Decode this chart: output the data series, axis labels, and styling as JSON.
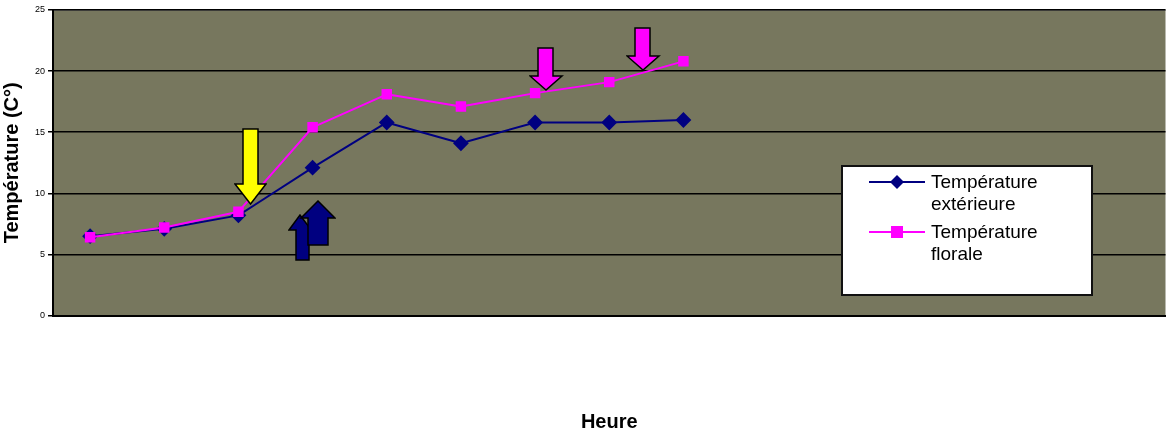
{
  "chart_data": {
    "type": "line",
    "xlabel": "Heure",
    "ylabel": "Température (C°)",
    "categories": [
      null,
      null,
      null,
      null,
      null,
      null,
      null,
      null,
      null,
      null,
      null,
      null,
      null,
      null,
      null
    ],
    "series": [
      {
        "name": "Température extérieure",
        "color": "#000080",
        "marker": "diamond",
        "values": [
          6.5,
          7.1,
          8.2,
          12.1,
          15.8,
          14.1,
          15.8,
          15.8,
          16.0,
          null,
          null,
          null,
          null,
          null,
          null
        ]
      },
      {
        "name": "Température florale",
        "color": "#ff00ff",
        "marker": "square",
        "values": [
          6.4,
          7.2,
          8.5,
          15.4,
          18.1,
          17.1,
          18.2,
          19.1,
          20.8,
          null,
          null,
          null,
          null,
          null,
          null
        ]
      }
    ],
    "ylim": [
      0,
      25
    ],
    "yticks": [
      0,
      5,
      10,
      15,
      20,
      25
    ],
    "grid": "y",
    "legend": "right",
    "line_style": "solid"
  }
}
